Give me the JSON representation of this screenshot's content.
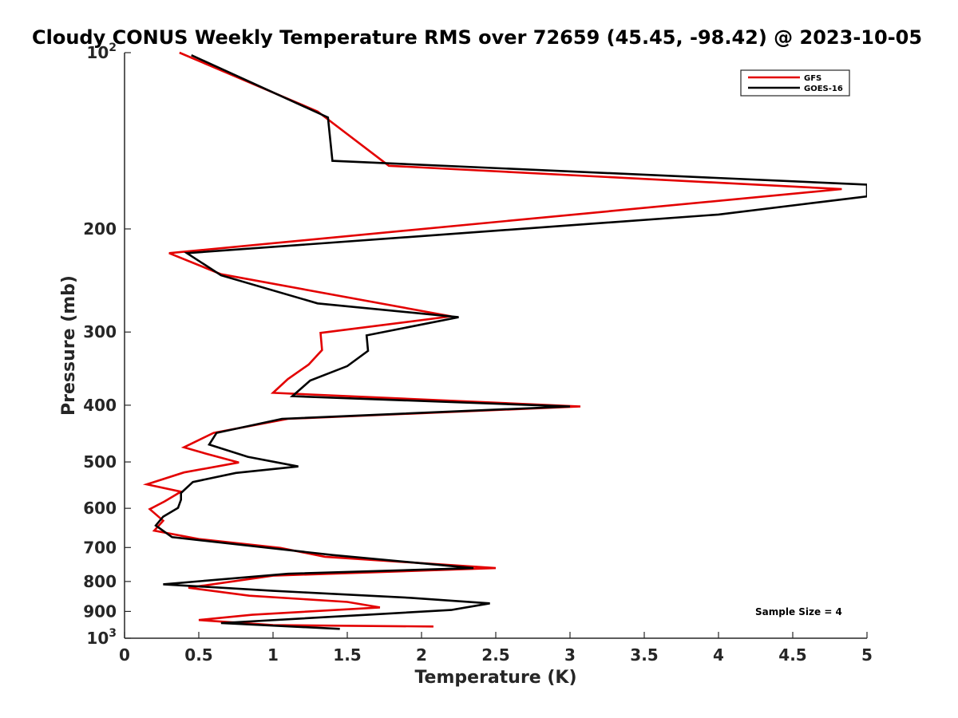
{
  "chart_data": {
    "type": "line",
    "title": "Cloudy CONUS Weekly Temperature RMS over 72659 (45.45, -98.42) @ 2023-10-05",
    "xlabel": "Temperature (K)",
    "ylabel": "Pressure (mb)",
    "xlim": [
      0,
      5
    ],
    "ylim": [
      1000,
      100
    ],
    "y_scale": "log",
    "y_reversed": true,
    "x_ticks": [
      0,
      0.5,
      1,
      1.5,
      2,
      2.5,
      3,
      3.5,
      4,
      4.5,
      5
    ],
    "x_tick_labels": [
      "0",
      "0.5",
      "1",
      "1.5",
      "2",
      "2.5",
      "3",
      "3.5",
      "4",
      "4.5",
      "5"
    ],
    "y_ticks": [
      100,
      200,
      300,
      400,
      500,
      600,
      700,
      800,
      900,
      1000
    ],
    "y_tick_labels": [
      "10^2",
      "200",
      "300",
      "400",
      "500",
      "600",
      "700",
      "800",
      "900",
      "10^3"
    ],
    "grid": false,
    "legend_position": "top-right",
    "annotation": "Sample Size = 4",
    "series": [
      {
        "name": "GFS",
        "color": "#e30000",
        "points": [
          [
            0.37,
            100
          ],
          [
            1.3,
            126
          ],
          [
            1.78,
            156
          ],
          [
            4.83,
            171
          ],
          [
            0.3,
            220
          ],
          [
            0.65,
            239
          ],
          [
            2.2,
            282
          ],
          [
            1.32,
            301
          ],
          [
            1.33,
            322
          ],
          [
            1.24,
            341
          ],
          [
            1.1,
            361
          ],
          [
            1.0,
            381
          ],
          [
            3.07,
            402
          ],
          [
            1.1,
            422
          ],
          [
            0.6,
            446
          ],
          [
            0.4,
            472
          ],
          [
            0.55,
            484
          ],
          [
            0.77,
            501
          ],
          [
            0.4,
            521
          ],
          [
            0.15,
            546
          ],
          [
            0.38,
            562
          ],
          [
            0.27,
            584
          ],
          [
            0.17,
            602
          ],
          [
            0.26,
            630
          ],
          [
            0.2,
            655
          ],
          [
            0.5,
            677
          ],
          [
            1.05,
            701
          ],
          [
            1.35,
            726
          ],
          [
            2.5,
            759
          ],
          [
            1.0,
            782
          ],
          [
            0.43,
            820
          ],
          [
            0.84,
            846
          ],
          [
            1.5,
            867
          ],
          [
            1.72,
            886
          ],
          [
            0.86,
            912
          ],
          [
            0.5,
            931
          ],
          [
            1.0,
            950
          ],
          [
            2.08,
            955
          ]
        ]
      },
      {
        "name": "GOES-16",
        "color": "#000000",
        "points": [
          [
            0.45,
            101
          ],
          [
            1.37,
            129
          ],
          [
            1.4,
            153
          ],
          [
            5.0,
            168
          ],
          [
            5.0,
            176
          ],
          [
            4.0,
            189
          ],
          [
            0.42,
            220
          ],
          [
            0.65,
            240
          ],
          [
            1.3,
            268
          ],
          [
            2.25,
            283
          ],
          [
            1.63,
            304
          ],
          [
            1.64,
            323
          ],
          [
            1.5,
            343
          ],
          [
            1.25,
            363
          ],
          [
            1.13,
            386
          ],
          [
            3.0,
            402
          ],
          [
            1.06,
            422
          ],
          [
            0.62,
            446
          ],
          [
            0.57,
            467
          ],
          [
            0.83,
            490
          ],
          [
            1.17,
            509
          ],
          [
            0.75,
            522
          ],
          [
            0.46,
            541
          ],
          [
            0.38,
            565
          ],
          [
            0.38,
            580
          ],
          [
            0.36,
            599
          ],
          [
            0.26,
            620
          ],
          [
            0.21,
            642
          ],
          [
            0.32,
            672
          ],
          [
            1.4,
            721
          ],
          [
            2.35,
            759
          ],
          [
            1.1,
            776
          ],
          [
            0.26,
            809
          ],
          [
            1.0,
            830
          ],
          [
            1.92,
            853
          ],
          [
            2.46,
            872
          ],
          [
            2.2,
            895
          ],
          [
            0.65,
            942
          ],
          [
            1.45,
            964
          ]
        ]
      }
    ]
  }
}
